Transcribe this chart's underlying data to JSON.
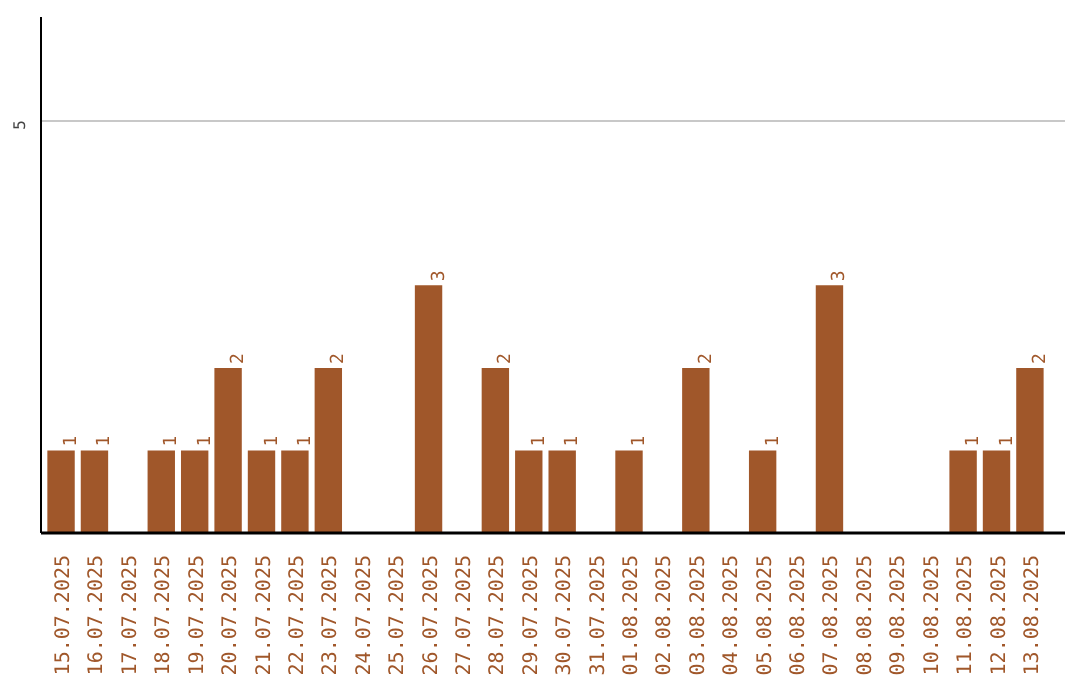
{
  "chart_data": {
    "type": "bar",
    "categories": [
      "15.07.2025",
      "16.07.2025",
      "17.07.2025",
      "18.07.2025",
      "19.07.2025",
      "20.07.2025",
      "21.07.2025",
      "22.07.2025",
      "23.07.2025",
      "24.07.2025",
      "25.07.2025",
      "26.07.2025",
      "27.07.2025",
      "28.07.2025",
      "29.07.2025",
      "30.07.2025",
      "31.07.2025",
      "01.08.2025",
      "02.08.2025",
      "03.08.2025",
      "04.08.2025",
      "05.08.2025",
      "06.08.2025",
      "07.08.2025",
      "08.08.2025",
      "09.08.2025",
      "10.08.2025",
      "11.08.2025",
      "12.08.2025",
      "13.08.2025"
    ],
    "values": [
      1,
      1,
      0,
      1,
      1,
      2,
      1,
      1,
      2,
      0,
      0,
      3,
      0,
      2,
      1,
      1,
      0,
      1,
      0,
      2,
      0,
      1,
      0,
      3,
      0,
      0,
      0,
      1,
      1,
      2
    ],
    "value_labels": [
      "1",
      "1",
      null,
      "1",
      "1",
      "2",
      "1",
      "1",
      "2",
      null,
      null,
      "3",
      null,
      "2",
      "1",
      "1",
      null,
      "1",
      null,
      "2",
      null,
      "1",
      null,
      "3",
      null,
      null,
      null,
      "1",
      "1",
      "2"
    ],
    "color": "#a0572a",
    "ylim": [
      0,
      6.25
    ],
    "yticks": [
      5
    ],
    "grid": "y"
  }
}
